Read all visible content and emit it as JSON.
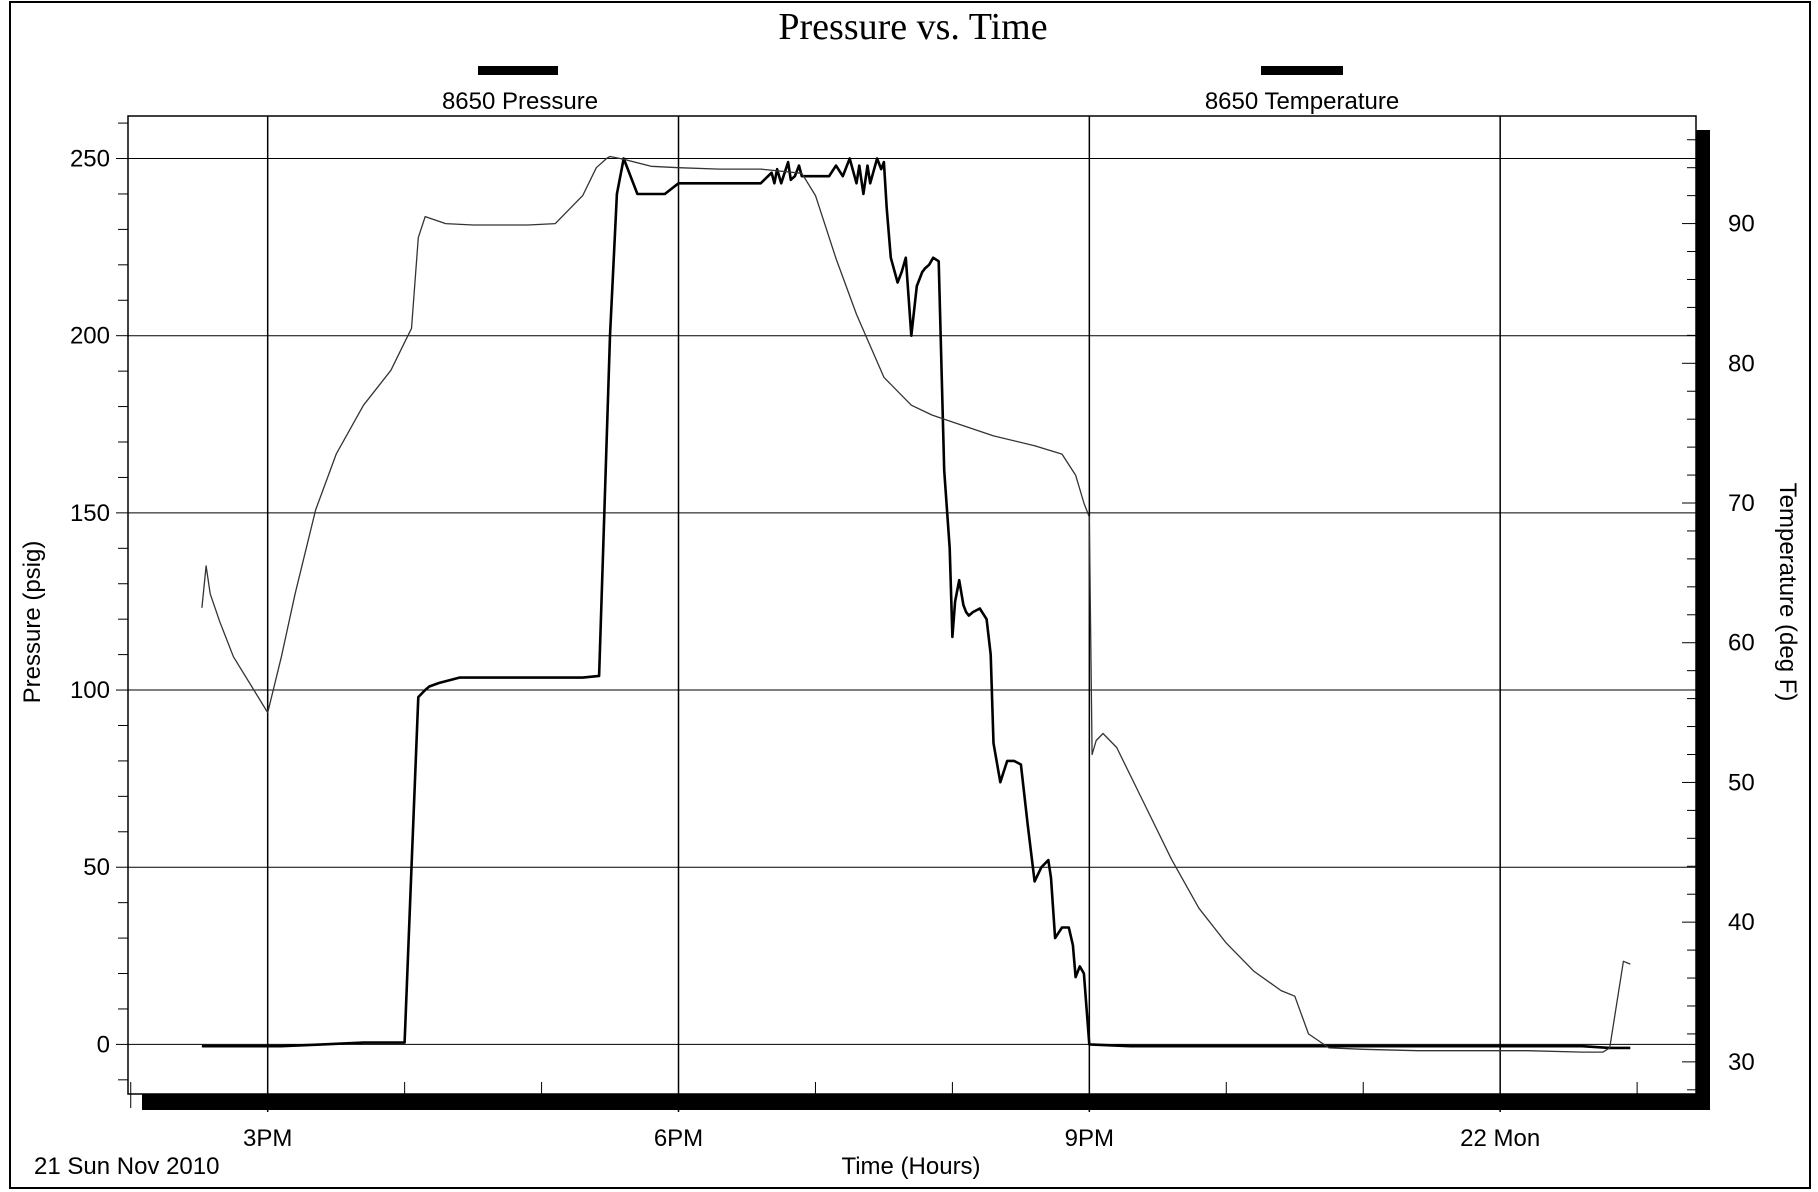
{
  "chart_data": {
    "type": "line",
    "title": "Pressure vs. Time",
    "xlabel": "Time (Hours)",
    "ylabel": "Pressure (psig)",
    "y2label": "Temperature (deg F)",
    "date_label": "21 Sun Nov 2010",
    "x_ticks": [
      {
        "value": 15,
        "label": "3PM"
      },
      {
        "value": 18,
        "label": "6PM"
      },
      {
        "value": 21,
        "label": "9PM"
      },
      {
        "value": 24,
        "label": "22 Mon"
      }
    ],
    "xlim": [
      13.98,
      25.43
    ],
    "ylim": [
      -14,
      262
    ],
    "y2lim": [
      27.7,
      97.7
    ],
    "y_ticks": [
      0,
      50,
      100,
      150,
      200,
      250
    ],
    "y2_ticks": [
      30,
      40,
      50,
      60,
      70,
      80,
      90
    ],
    "grid": true,
    "legend": "top",
    "colors": {
      "pressure": "#000000",
      "temperature": "#333333"
    },
    "series": [
      {
        "name": "8650 Pressure",
        "axis": "left",
        "x": [
          14.52,
          14.8,
          15.1,
          15.4,
          15.7,
          16.0,
          16.05,
          16.1,
          16.15,
          16.18,
          16.25,
          16.4,
          16.8,
          16.9,
          17.0,
          17.1,
          17.2,
          17.3,
          17.42,
          17.45,
          17.5,
          17.55,
          17.6,
          17.7,
          17.8,
          17.9,
          18.0,
          18.3,
          18.6,
          18.68,
          18.7,
          18.72,
          18.75,
          18.8,
          18.82,
          18.85,
          18.88,
          18.9,
          19.0,
          19.1,
          19.15,
          19.2,
          19.25,
          19.3,
          19.32,
          19.35,
          19.38,
          19.4,
          19.45,
          19.48,
          19.5,
          19.52,
          19.55,
          19.6,
          19.63,
          19.66,
          19.7,
          19.74,
          19.78,
          19.8,
          19.83,
          19.86,
          19.9,
          19.94,
          19.98,
          20.0,
          20.02,
          20.05,
          20.08,
          20.1,
          20.12,
          20.15,
          20.2,
          20.25,
          20.28,
          20.3,
          20.35,
          20.4,
          20.45,
          20.5,
          20.55,
          20.6,
          20.65,
          20.7,
          20.72,
          20.75,
          20.8,
          20.85,
          20.88,
          20.9,
          20.93,
          20.96,
          20.98,
          21.0,
          21.3,
          21.6,
          21.9,
          22.2,
          22.5,
          22.8,
          23.1,
          23.4,
          23.7,
          24.0,
          24.3,
          24.6,
          24.8,
          24.9,
          24.95
        ],
        "values": [
          -0.5,
          -0.5,
          -0.5,
          0,
          0.5,
          0.5,
          50,
          98,
          100,
          101,
          102,
          103.5,
          103.5,
          103.5,
          103.5,
          103.5,
          103.5,
          103.5,
          104,
          140,
          200,
          240,
          250,
          240,
          240,
          240,
          243,
          243,
          243,
          246,
          243,
          247,
          243,
          249,
          244,
          245,
          248,
          245,
          245,
          245,
          248,
          245,
          250,
          243,
          248,
          240,
          248,
          243,
          250,
          247,
          249,
          236,
          222,
          215,
          218,
          222,
          200,
          214,
          218,
          219,
          220,
          222,
          221,
          162,
          140,
          115,
          125,
          131,
          124,
          122,
          121,
          122,
          123,
          120,
          110,
          85,
          74,
          80,
          80,
          79,
          62,
          46,
          50,
          52,
          47,
          30,
          33,
          33,
          28,
          19,
          22,
          20,
          10,
          0,
          -0.5,
          -0.5,
          -0.5,
          -0.5,
          -0.5,
          -0.5,
          -0.5,
          -0.5,
          -0.5,
          -0.5,
          -0.5,
          -0.5,
          -1,
          -1,
          -1
        ]
      },
      {
        "name": "8650 Temperature",
        "axis": "right",
        "x": [
          14.52,
          14.55,
          14.58,
          14.65,
          14.75,
          15.0,
          15.1,
          15.2,
          15.35,
          15.5,
          15.7,
          15.9,
          16.0,
          16.05,
          16.1,
          16.15,
          16.3,
          16.5,
          16.9,
          17.1,
          17.2,
          17.3,
          17.4,
          17.48,
          17.5,
          17.6,
          17.8,
          18.0,
          18.3,
          18.6,
          18.9,
          19.0,
          19.15,
          19.3,
          19.5,
          19.7,
          19.85,
          20.0,
          20.3,
          20.6,
          20.8,
          20.9,
          20.96,
          21.0,
          21.02,
          21.05,
          21.1,
          21.2,
          21.4,
          21.6,
          21.8,
          22.0,
          22.2,
          22.4,
          22.5,
          22.6,
          22.75,
          23.0,
          23.4,
          23.8,
          24.2,
          24.6,
          24.75,
          24.8,
          24.9,
          24.95
        ],
        "values": [
          62.5,
          65.5,
          63.5,
          61.5,
          59,
          55,
          59,
          63.5,
          69.5,
          73.5,
          77,
          79.5,
          81.5,
          82.5,
          89,
          90.5,
          90,
          89.9,
          89.9,
          90,
          91,
          92,
          94,
          94.7,
          94.8,
          94.6,
          94.1,
          94,
          93.9,
          93.9,
          93.6,
          92,
          87.5,
          83.5,
          79,
          77,
          76.3,
          75.8,
          74.8,
          74.1,
          73.5,
          72,
          70,
          69,
          52,
          53,
          53.5,
          52.5,
          48.5,
          44.5,
          41,
          38.5,
          36.5,
          35.1,
          34.7,
          32,
          31,
          30.9,
          30.8,
          30.8,
          30.8,
          30.7,
          30.7,
          31,
          37.2,
          37
        ]
      }
    ]
  }
}
